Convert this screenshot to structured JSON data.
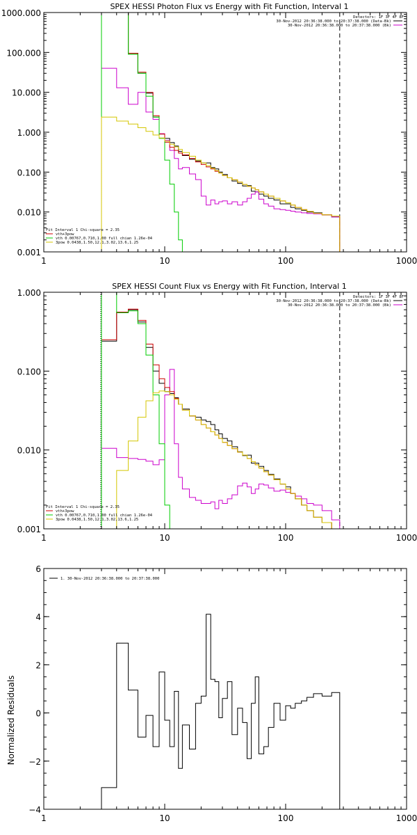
{
  "colors": {
    "black": "#000000",
    "red": "#cc0000",
    "green": "#00cc00",
    "yellow": "#d4c600",
    "magenta": "#cc00cc"
  },
  "chart_data": [
    {
      "type": "line",
      "title": "SPEX HESSI Photon Flux vs Energy with Fit Function, Interval 1",
      "xscale": "log",
      "yscale": "log",
      "xlim": [
        1,
        1000
      ],
      "ylim": [
        0.001,
        1000
      ],
      "xticks": [
        {
          "v": 1,
          "label": "1"
        },
        {
          "v": 10,
          "label": "10"
        },
        {
          "v": 100,
          "label": "100"
        },
        {
          "v": 1000,
          "label": "1000"
        }
      ],
      "yticks": [
        {
          "v": 0.001,
          "label": "0.001"
        },
        {
          "v": 0.01,
          "label": "0.010"
        },
        {
          "v": 0.1,
          "label": "0.100"
        },
        {
          "v": 1,
          "label": "1.000"
        },
        {
          "v": 10,
          "label": "10.000"
        },
        {
          "v": 100,
          "label": "100.000"
        },
        {
          "v": 1000,
          "label": "1000.000"
        }
      ],
      "legend_topright": [
        "Detectors: 1F 3F 4F 8F",
        "30-Nov-2012 20:36:38.000 to 20:37:38.000 (Data-Bk)",
        "30-Nov-2012 20:36:38.000 to 20:37:38.000 (Bk)"
      ],
      "legend_topright_colors": [
        "#000000",
        "#000000",
        "#cc00cc"
      ],
      "legend_bottomleft": [
        "Fit Interval 1    Chi-square = 2.35",
        "vth+3pow",
        "vth 0.00767,0.710,1.00  full chian 1.26e-04",
        "3pow 0.0438,1.50,12.1,3.02,13.6,1.25"
      ],
      "legend_bottomleft_colors": [
        "#000000",
        "#cc0000",
        "#00cc00",
        "#d4c600"
      ],
      "vlines": [
        {
          "x": 3,
          "color": "#d4c600",
          "style": "dotted"
        },
        {
          "x": 280,
          "color": "#000000",
          "style": "dashed"
        }
      ],
      "edges": [
        3,
        4,
        5,
        6,
        7,
        8,
        9,
        10,
        11,
        12,
        13,
        14,
        16,
        18,
        20,
        22,
        24,
        26,
        28,
        30,
        33,
        36,
        40,
        44,
        48,
        52,
        56,
        60,
        66,
        72,
        80,
        90,
        100,
        110,
        120,
        135,
        150,
        170,
        200,
        240,
        280
      ],
      "series": [
        {
          "name": "Data-Bk",
          "color": "#000000",
          "values": [
            1000,
            1000,
            95,
            30,
            9.5,
            2.4,
            0.9,
            0.7,
            0.55,
            0.45,
            0.33,
            0.26,
            0.21,
            0.19,
            0.17,
            0.17,
            0.13,
            0.12,
            0.1,
            0.087,
            0.072,
            0.06,
            0.052,
            0.045,
            0.046,
            0.033,
            0.032,
            0.028,
            0.025,
            0.022,
            0.02,
            0.016,
            0.016,
            0.013,
            0.012,
            0.011,
            0.01,
            0.0095,
            0.0085,
            0.0075
          ]
        },
        {
          "name": "Bk",
          "color": "#cc00cc",
          "values": [
            40,
            13,
            5,
            10,
            3.2,
            2.1,
            0.92,
            0.62,
            0.35,
            0.22,
            0.12,
            0.13,
            0.09,
            0.065,
            0.025,
            0.015,
            0.02,
            0.016,
            0.018,
            0.019,
            0.016,
            0.018,
            0.015,
            0.018,
            0.022,
            0.028,
            0.032,
            0.021,
            0.016,
            0.014,
            0.012,
            0.0115,
            0.011,
            0.0105,
            0.01,
            0.0095,
            0.0092,
            0.009,
            0.0085,
            0.0075
          ]
        },
        {
          "name": "vth+3pow",
          "color": "#cc0000",
          "values": [
            1000,
            1000,
            95,
            32,
            10,
            2.6,
            0.9,
            0.56,
            0.42,
            0.35,
            0.3,
            0.27,
            0.22,
            0.18,
            0.155,
            0.135,
            0.12,
            0.105,
            0.095,
            0.082,
            0.072,
            0.064,
            0.056,
            0.049,
            0.044,
            0.04,
            0.036,
            0.032,
            0.028,
            0.025,
            0.022,
            0.019,
            0.017,
            0.015,
            0.013,
            0.0115,
            0.0103,
            0.0093,
            0.0085,
            0.0079
          ]
        },
        {
          "name": "vth",
          "color": "#00cc00",
          "values": [
            1000,
            1000,
            90,
            30,
            8,
            2.4,
            0.7,
            0.2,
            0.05,
            0.01,
            0.002,
            0.0004
          ]
        },
        {
          "name": "3pow",
          "color": "#d4c600",
          "values": [
            2.4,
            1.9,
            1.6,
            1.3,
            1.05,
            0.85,
            0.72,
            0.6,
            0.5,
            0.43,
            0.37,
            0.31,
            0.25,
            0.2,
            0.17,
            0.145,
            0.125,
            0.11,
            0.095,
            0.082,
            0.072,
            0.064,
            0.056,
            0.049,
            0.044,
            0.04,
            0.036,
            0.032,
            0.028,
            0.025,
            0.022,
            0.019,
            0.017,
            0.015,
            0.013,
            0.0115,
            0.0103,
            0.0093,
            0.0085,
            0.0079
          ]
        }
      ]
    },
    {
      "type": "line",
      "title": "SPEX HESSI Count Flux vs Energy with Fit Function, Interval 1",
      "xscale": "log",
      "yscale": "log",
      "xlim": [
        1,
        1000
      ],
      "ylim": [
        0.001,
        1
      ],
      "xticks": [
        {
          "v": 1,
          "label": "1"
        },
        {
          "v": 10,
          "label": "10"
        },
        {
          "v": 100,
          "label": "100"
        },
        {
          "v": 1000,
          "label": "1000"
        }
      ],
      "yticks": [
        {
          "v": 0.001,
          "label": "0.001"
        },
        {
          "v": 0.01,
          "label": "0.010"
        },
        {
          "v": 0.1,
          "label": "0.100"
        },
        {
          "v": 1,
          "label": "1.000"
        }
      ],
      "legend_topright": [
        "Detectors: 1F 3F 4F 8F",
        "30-Nov-2012 20:36:38.000 to 20:37:38.000 (Data-Bk)",
        "30-Nov-2012 20:36:38.000 to 20:37:38.000 (Bk)"
      ],
      "legend_topright_colors": [
        "#000000",
        "#000000",
        "#cc00cc"
      ],
      "legend_bottomleft": [
        "Fit Interval 1    Chi-square = 2.35",
        "vth+3pow",
        "vth 0.00767,0.710,1.00  full chian 1.26e-04",
        "3pow 0.0438,1.50,12.1,3.02,13.6,1.25"
      ],
      "legend_bottomleft_colors": [
        "#000000",
        "#cc0000",
        "#00cc00",
        "#d4c600"
      ],
      "vlines": [
        {
          "x": 3,
          "color": "#d4c600",
          "style": "dotted"
        },
        {
          "x": 280,
          "color": "#000000",
          "style": "dashed"
        }
      ],
      "edges": [
        3,
        4,
        5,
        6,
        7,
        8,
        9,
        10,
        11,
        12,
        13,
        14,
        16,
        18,
        20,
        22,
        24,
        26,
        28,
        30,
        33,
        36,
        40,
        44,
        48,
        52,
        56,
        60,
        66,
        72,
        80,
        90,
        100,
        110,
        120,
        135,
        150,
        170,
        200,
        240,
        280
      ],
      "series": [
        {
          "name": "Data-Bk",
          "color": "#000000",
          "values": [
            0.24,
            0.55,
            0.6,
            0.42,
            0.2,
            0.1,
            0.07,
            0.055,
            0.052,
            0.046,
            0.038,
            0.033,
            0.027,
            0.026,
            0.024,
            0.023,
            0.021,
            0.018,
            0.016,
            0.014,
            0.013,
            0.011,
            0.0095,
            0.0085,
            0.0086,
            0.0068,
            0.0068,
            0.0062,
            0.0055,
            0.0049,
            0.0043,
            0.0037,
            0.0034,
            0.0028,
            0.0024,
            0.002,
            0.0017,
            0.0014,
            0.0012,
            0.001
          ]
        },
        {
          "name": "Bk",
          "color": "#cc00cc",
          "values": [
            0.0105,
            0.008,
            0.0078,
            0.0076,
            0.0072,
            0.0065,
            0.0075,
            0.05,
            0.105,
            0.012,
            0.0045,
            0.0032,
            0.0025,
            0.0023,
            0.0021,
            0.0021,
            0.0022,
            0.0018,
            0.0023,
            0.0021,
            0.0024,
            0.0027,
            0.0035,
            0.0038,
            0.0034,
            0.0028,
            0.0032,
            0.0037,
            0.0036,
            0.0033,
            0.003,
            0.0031,
            0.0029,
            0.0028,
            0.0026,
            0.0024,
            0.0021,
            0.002,
            0.0017,
            0.0013
          ]
        },
        {
          "name": "vth+3pow",
          "color": "#cc0000",
          "values": [
            0.25,
            0.56,
            0.61,
            0.44,
            0.22,
            0.12,
            0.08,
            0.062,
            0.055,
            0.045,
            0.038,
            0.032,
            0.027,
            0.024,
            0.021,
            0.019,
            0.017,
            0.0155,
            0.014,
            0.0125,
            0.0114,
            0.0104,
            0.0094,
            0.0086,
            0.0078,
            0.0071,
            0.0065,
            0.0059,
            0.0053,
            0.0048,
            0.0042,
            0.0037,
            0.0032,
            0.0028,
            0.0024,
            0.002,
            0.0017,
            0.0014,
            0.0012,
            0.001
          ]
        },
        {
          "name": "vth",
          "color": "#00cc00",
          "values": [
            1,
            0.55,
            0.58,
            0.4,
            0.16,
            0.05,
            0.012,
            0.002,
            0.0003
          ]
        },
        {
          "name": "3pow",
          "color": "#d4c600",
          "values": [
            0.0005,
            0.0055,
            0.013,
            0.026,
            0.042,
            0.053,
            0.056,
            0.055,
            0.05,
            0.044,
            0.038,
            0.032,
            0.027,
            0.024,
            0.021,
            0.019,
            0.017,
            0.0155,
            0.014,
            0.0125,
            0.0114,
            0.0104,
            0.0094,
            0.0086,
            0.0078,
            0.0071,
            0.0065,
            0.0059,
            0.0053,
            0.0048,
            0.0042,
            0.0037,
            0.0032,
            0.0028,
            0.0024,
            0.002,
            0.0017,
            0.0014,
            0.0012,
            0.001
          ]
        }
      ]
    },
    {
      "type": "line",
      "title": "",
      "ylabel": "Normalized Residuals",
      "xscale": "log",
      "yscale": "linear",
      "xlim": [
        1,
        1000
      ],
      "ylim": [
        -4,
        6
      ],
      "xticks": [
        {
          "v": 1,
          "label": "1"
        },
        {
          "v": 10,
          "label": "10"
        },
        {
          "v": 100,
          "label": "100"
        },
        {
          "v": 1000,
          "label": "1000"
        }
      ],
      "yticks": [
        {
          "v": -4,
          "label": "−4"
        },
        {
          "v": -2,
          "label": "−2"
        },
        {
          "v": 0,
          "label": "0"
        },
        {
          "v": 2,
          "label": "2"
        },
        {
          "v": 4,
          "label": "4"
        },
        {
          "v": 6,
          "label": "6"
        }
      ],
      "legend_topleft": [
        "1. 30-Nov-2012 20:36:38.000 to 20:37:38.000"
      ],
      "edges": [
        3,
        4,
        5,
        6,
        7,
        8,
        9,
        10,
        11,
        12,
        13,
        14,
        16,
        18,
        20,
        22,
        24,
        26,
        28,
        30,
        33,
        36,
        40,
        44,
        48,
        52,
        56,
        60,
        66,
        72,
        80,
        90,
        100,
        110,
        120,
        135,
        150,
        170,
        200,
        240,
        280
      ],
      "series": [
        {
          "name": "",
          "color": "#000000",
          "values": [
            -3.1,
            2.9,
            0.95,
            -1,
            -0.1,
            -1.4,
            1.7,
            -0.3,
            -1.4,
            0.9,
            -2.3,
            -0.5,
            -1.5,
            0.4,
            0.7,
            4.1,
            1.4,
            1.3,
            -0.2,
            0.6,
            1.3,
            -0.9,
            0.2,
            -0.4,
            -1.9,
            0.4,
            1.5,
            -1.7,
            -1.4,
            -0.6,
            0.4,
            -0.3,
            0.3,
            0.2,
            0.4,
            0.5,
            0.65,
            0.8,
            0.7,
            0.85
          ]
        }
      ]
    }
  ]
}
